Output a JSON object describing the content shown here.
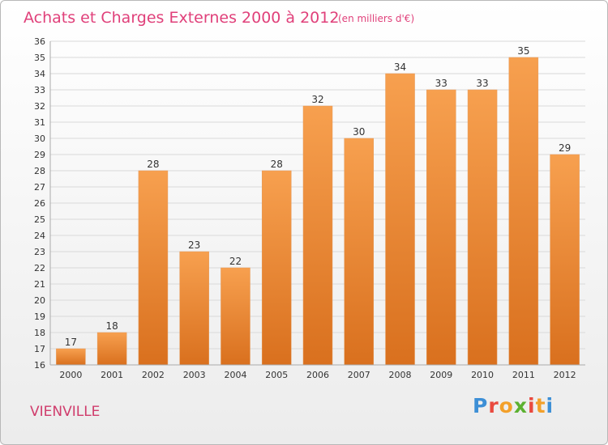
{
  "header": {
    "title": "Achats et Charges Externes 2000 à 2012",
    "unit": "(en milliers d'€)"
  },
  "footer": {
    "city": "VIENVILLE",
    "logo": {
      "letters": [
        "P",
        "r",
        "o",
        "x",
        "i",
        "t",
        "i"
      ],
      "colors": [
        "#3d8fd6",
        "#e94a3f",
        "#f3a02a",
        "#5cb130",
        "#e94a3f",
        "#f3a02a",
        "#3d8fd6"
      ]
    }
  },
  "chart_data": {
    "type": "bar",
    "title": "Achats et Charges Externes 2000 à 2012",
    "subtitle": "(en milliers d'€)",
    "categories": [
      "2000",
      "2001",
      "2002",
      "2003",
      "2004",
      "2005",
      "2006",
      "2007",
      "2008",
      "2009",
      "2010",
      "2011",
      "2012"
    ],
    "values": [
      17,
      18,
      28,
      23,
      22,
      28,
      32,
      30,
      34,
      33,
      33,
      35,
      29
    ],
    "ylim": [
      16,
      36
    ],
    "yticks": [
      16,
      17,
      18,
      19,
      20,
      21,
      22,
      23,
      24,
      25,
      26,
      27,
      28,
      29,
      30,
      31,
      32,
      33,
      34,
      35,
      36
    ],
    "grid": true,
    "bar_colors": [
      "#f7a04f",
      "#d9701e"
    ]
  }
}
